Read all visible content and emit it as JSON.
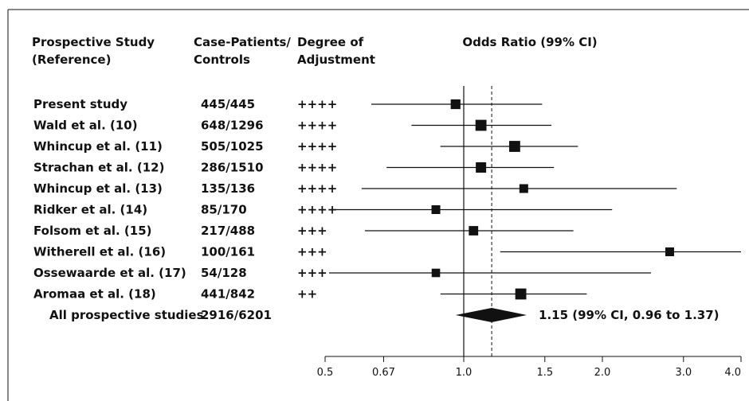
{
  "chart_data": {
    "type": "forest",
    "headers": {
      "study": [
        "Prospective Study",
        "(Reference)"
      ],
      "counts": [
        "Case-Patients/",
        "Controls"
      ],
      "adjustment": [
        "Degree of",
        "Adjustment"
      ],
      "estimate": "Odds Ratio (99% CI)"
    },
    "studies": [
      {
        "name": "Present study",
        "counts": "445/445",
        "adjustment": "++++",
        "or": 0.96,
        "lo": 0.63,
        "hi": 1.48,
        "weight": 0.65
      },
      {
        "name": "Wald et al. (10)",
        "counts": "648/1296",
        "adjustment": "++++",
        "or": 1.09,
        "lo": 0.77,
        "hi": 1.55,
        "weight": 0.85
      },
      {
        "name": "Whincup et al. (11)",
        "counts": "505/1025",
        "adjustment": "++++",
        "or": 1.29,
        "lo": 0.89,
        "hi": 1.77,
        "weight": 0.85
      },
      {
        "name": "Strachan et al. (12)",
        "counts": "286/1510",
        "adjustment": "++++",
        "or": 1.09,
        "lo": 0.68,
        "hi": 1.57,
        "weight": 0.75
      },
      {
        "name": "Whincup et al. (13)",
        "counts": "135/136",
        "adjustment": "++++",
        "or": 1.35,
        "lo": 0.6,
        "hi": 2.9,
        "weight": 0.5
      },
      {
        "name": "Ridker et al. (14)",
        "counts": "85/170",
        "adjustment": "++++",
        "or": 0.87,
        "lo": 0.52,
        "hi": 2.1,
        "weight": 0.5
      },
      {
        "name": "Folsom et al. (15)",
        "counts": "217/488",
        "adjustment": "+++",
        "or": 1.05,
        "lo": 0.61,
        "hi": 1.73,
        "weight": 0.6
      },
      {
        "name": "Witherell et al. (16)",
        "counts": "100/161",
        "adjustment": "+++",
        "or": 2.8,
        "lo": 1.2,
        "hi": 4.0,
        "weight": 0.5
      },
      {
        "name": "Ossewaarde et al. (17)",
        "counts": "54/128",
        "adjustment": "+++",
        "or": 0.87,
        "lo": 0.51,
        "hi": 2.55,
        "weight": 0.45
      },
      {
        "name": "Aromaa et al. (18)",
        "counts": "441/842",
        "adjustment": "++",
        "or": 1.33,
        "lo": 0.89,
        "hi": 1.85,
        "weight": 0.85
      }
    ],
    "summary": {
      "name": "All prospective studies",
      "counts": "2916/6201",
      "or": 1.15,
      "lo": 0.96,
      "hi": 1.37,
      "label": "1.15 (99% CI, 0.96 to 1.37)"
    },
    "x_axis": {
      "scale": "log",
      "range": [
        0.5,
        4.0
      ],
      "ticks": [
        0.5,
        0.67,
        1.0,
        1.5,
        2.0,
        3.0,
        4.0
      ],
      "tick_labels": [
        "0.5",
        "0.67",
        "1.0",
        "1.5",
        "2.0",
        "3.0",
        "4.0"
      ],
      "reference_line": 1.0,
      "summary_line": 1.15
    },
    "colors": {
      "ink": "#111111",
      "background": "#ffffff"
    }
  }
}
